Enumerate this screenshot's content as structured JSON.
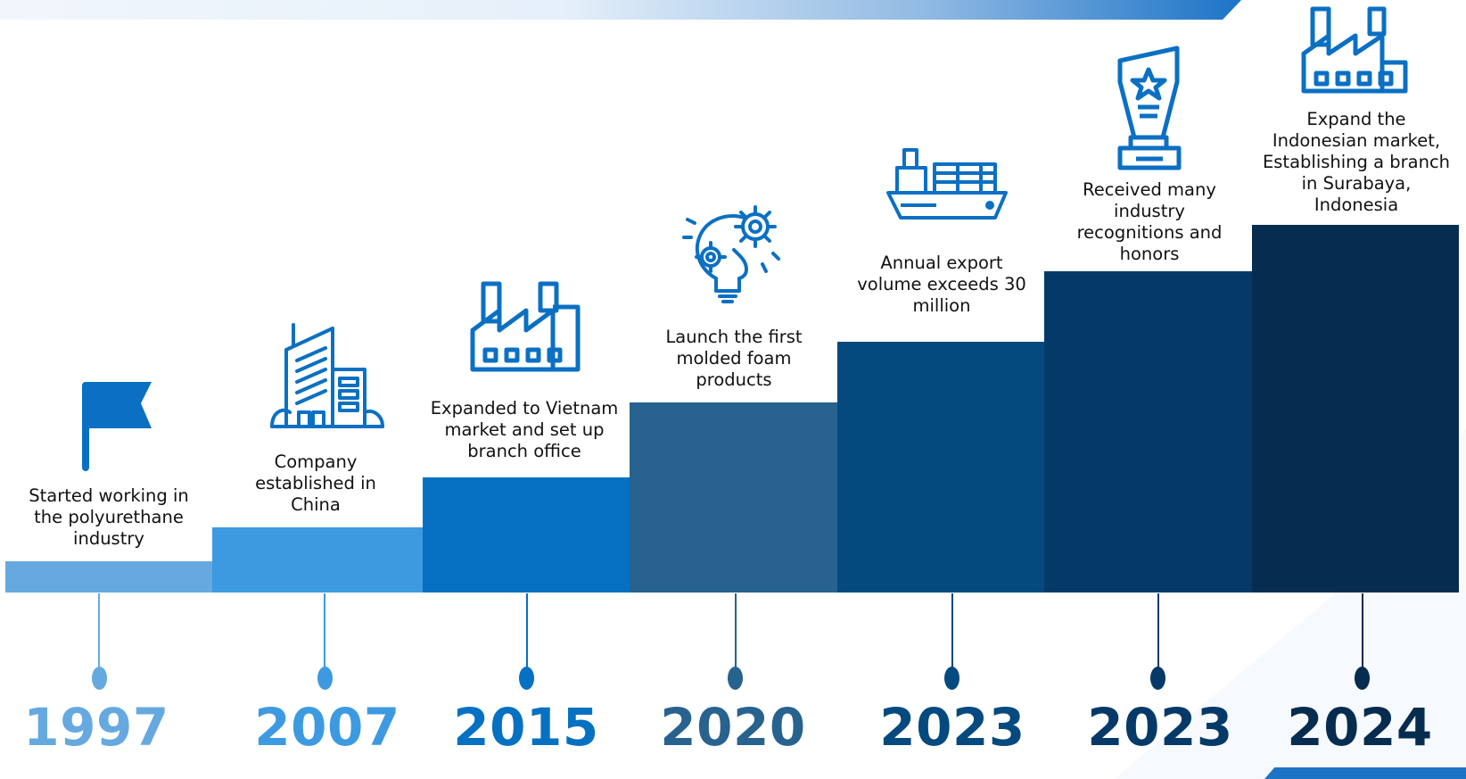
{
  "colors": {
    "primary": "#0b70c3",
    "step_1997": "#66a9e0",
    "step_2007": "#3d9ae0",
    "step_2015": "#0671c2",
    "step_2020": "#28628f",
    "step_2023a": "#054a7e",
    "step_2023b": "#053a68",
    "step_2024": "#062c4f"
  },
  "milestones": [
    {
      "year": "1997",
      "caption": "Started working in the polyurethane industry",
      "icon": "flag-icon"
    },
    {
      "year": "2007",
      "caption": "Company established in China",
      "icon": "office-building-icon"
    },
    {
      "year": "2015",
      "caption": "Expanded to Vietnam market and set up branch office",
      "icon": "factory-icon"
    },
    {
      "year": "2020",
      "caption": "Launch the first molded foam products",
      "icon": "lightbulb-gear-icon"
    },
    {
      "year": "2023",
      "caption": "Annual export volume exceeds 30 million",
      "icon": "cargo-ship-icon"
    },
    {
      "year": "2023",
      "caption": "Received many industry recognitions and honors",
      "icon": "trophy-icon"
    },
    {
      "year": "2024",
      "caption": "Expand the Indonesian market, Establishing a branch in Surabaya, Indonesia",
      "icon": "factory-icon"
    }
  ]
}
